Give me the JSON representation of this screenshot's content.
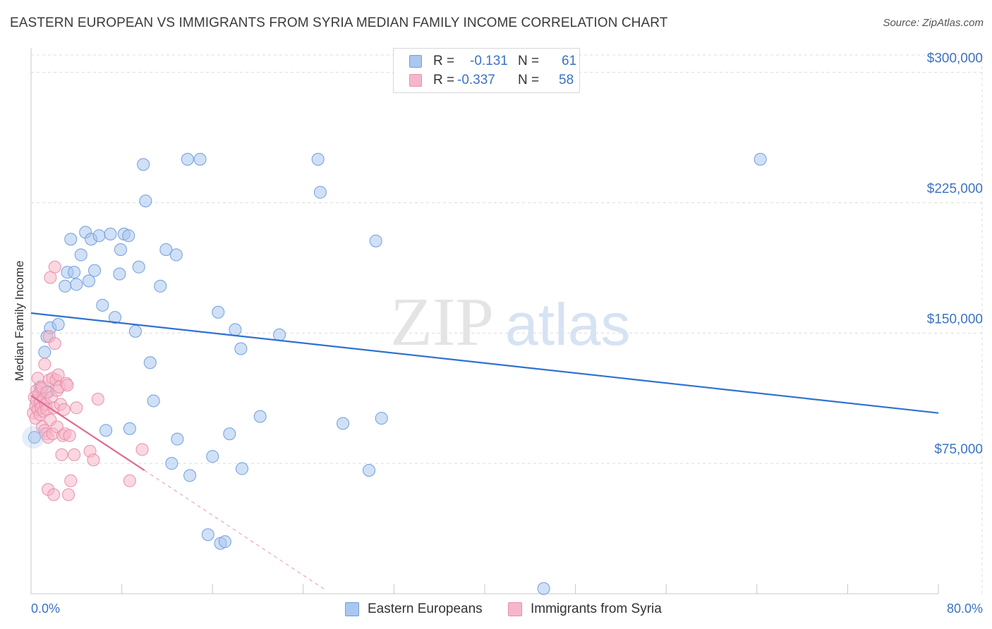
{
  "title": "EASTERN EUROPEAN VS IMMIGRANTS FROM SYRIA MEDIAN FAMILY INCOME CORRELATION CHART",
  "source": "Source: ZipAtlas.com",
  "watermark": {
    "zip": "ZIP",
    "atlas": "atlas"
  },
  "legend": {
    "r_label": "R =",
    "n_label": "N =",
    "rows": [
      {
        "r": "-0.131",
        "n": "61",
        "color": "#a9c7ef"
      },
      {
        "r": "-0.337",
        "n": "58",
        "color": "#f6b6c9"
      }
    ]
  },
  "colors": {
    "blue_fill": "#a9c7ef",
    "blue_stroke": "#6f9fdc",
    "blue_line": "#2f72cf",
    "pink_fill": "#f6b6c9",
    "pink_stroke": "#e890ab",
    "pink_line": "#e06a93",
    "grid": "#dcdcdc",
    "tick_text": "#3b73c4"
  },
  "chart_data": {
    "type": "scatter",
    "title": "EASTERN EUROPEAN VS IMMIGRANTS FROM SYRIA MEDIAN FAMILY INCOME CORRELATION CHART",
    "xlabel": "",
    "ylabel": "Median Family Income",
    "xlim": [
      0,
      80
    ],
    "ylim": [
      0,
      310000
    ],
    "x_tick_labels": [
      "0.0%",
      "80.0%"
    ],
    "y_ticks": [
      {
        "value": 75000,
        "label": "$75,000"
      },
      {
        "value": 150000,
        "label": "$150,000"
      },
      {
        "value": 225000,
        "label": "$225,000"
      },
      {
        "value": 300000,
        "label": "$300,000"
      }
    ],
    "series": [
      {
        "name": "Eastern Europeans",
        "color": "#a9c7ef",
        "trend": {
          "x": [
            0,
            80
          ],
          "y": [
            161500,
            104000
          ]
        },
        "points": [
          [
            0.8,
            119000
          ],
          [
            0.8,
            111000
          ],
          [
            1.2,
            139000
          ],
          [
            1.4,
            148000
          ],
          [
            1.7,
            153000
          ],
          [
            2.4,
            155000
          ],
          [
            3.0,
            177000
          ],
          [
            3.2,
            185000
          ],
          [
            3.5,
            204000
          ],
          [
            3.8,
            185000
          ],
          [
            4.0,
            178000
          ],
          [
            4.4,
            195000
          ],
          [
            4.8,
            208000
          ],
          [
            5.1,
            180000
          ],
          [
            5.3,
            204000
          ],
          [
            5.6,
            186000
          ],
          [
            6.0,
            206000
          ],
          [
            6.3,
            166000
          ],
          [
            6.6,
            94000
          ],
          [
            7.0,
            207000
          ],
          [
            7.4,
            159000
          ],
          [
            7.8,
            184000
          ],
          [
            7.9,
            198000
          ],
          [
            8.2,
            207000
          ],
          [
            8.6,
            206000
          ],
          [
            8.7,
            95000
          ],
          [
            9.2,
            151000
          ],
          [
            9.5,
            188000
          ],
          [
            9.9,
            247000
          ],
          [
            10.1,
            226000
          ],
          [
            10.5,
            133000
          ],
          [
            10.8,
            111000
          ],
          [
            11.4,
            177000
          ],
          [
            11.9,
            198000
          ],
          [
            12.4,
            75000
          ],
          [
            12.8,
            195000
          ],
          [
            12.9,
            89000
          ],
          [
            13.8,
            250000
          ],
          [
            14.0,
            68000
          ],
          [
            14.9,
            250000
          ],
          [
            15.6,
            34000
          ],
          [
            16.0,
            79000
          ],
          [
            16.5,
            162000
          ],
          [
            16.7,
            29000
          ],
          [
            17.1,
            30000
          ],
          [
            17.5,
            92000
          ],
          [
            18.0,
            152000
          ],
          [
            18.5,
            141000
          ],
          [
            18.6,
            72000
          ],
          [
            20.2,
            102000
          ],
          [
            21.9,
            149000
          ],
          [
            25.3,
            250000
          ],
          [
            25.5,
            231000
          ],
          [
            27.5,
            98000
          ],
          [
            29.8,
            71000
          ],
          [
            30.4,
            203000
          ],
          [
            30.9,
            101000
          ],
          [
            45.2,
            3000
          ],
          [
            64.3,
            250000
          ],
          [
            0.3,
            90000
          ],
          [
            1.5,
            116000
          ]
        ]
      },
      {
        "name": "Immigrants from Syria",
        "color": "#f6b6c9",
        "trend": {
          "x": [
            0,
            10
          ],
          "y": [
            114000,
            71000
          ]
        },
        "trend_dashed": {
          "x": [
            10,
            26
          ],
          "y": [
            71000,
            2000
          ]
        },
        "points": [
          [
            0.2,
            104000
          ],
          [
            0.3,
            113000
          ],
          [
            0.4,
            101000
          ],
          [
            0.4,
            108000
          ],
          [
            0.5,
            117000
          ],
          [
            0.5,
            111000
          ],
          [
            0.6,
            106000
          ],
          [
            0.6,
            124000
          ],
          [
            0.7,
            115000
          ],
          [
            0.8,
            110000
          ],
          [
            0.8,
            103000
          ],
          [
            0.9,
            118000
          ],
          [
            0.9,
            107000
          ],
          [
            1.0,
            96000
          ],
          [
            1.0,
            119000
          ],
          [
            1.1,
            112000
          ],
          [
            1.1,
            105000
          ],
          [
            1.2,
            94000
          ],
          [
            1.2,
            132000
          ],
          [
            1.3,
            109000
          ],
          [
            1.3,
            92000
          ],
          [
            1.4,
            116000
          ],
          [
            1.4,
            106000
          ],
          [
            1.5,
            60000
          ],
          [
            1.5,
            90000
          ],
          [
            1.6,
            148000
          ],
          [
            1.6,
            123000
          ],
          [
            1.7,
            182000
          ],
          [
            1.7,
            100000
          ],
          [
            1.8,
            113000
          ],
          [
            1.9,
            124000
          ],
          [
            1.9,
            92000
          ],
          [
            2.0,
            57000
          ],
          [
            2.0,
            107000
          ],
          [
            2.1,
            188000
          ],
          [
            2.1,
            144000
          ],
          [
            2.2,
            123000
          ],
          [
            2.3,
            117000
          ],
          [
            2.3,
            96000
          ],
          [
            2.4,
            126000
          ],
          [
            2.5,
            119000
          ],
          [
            2.6,
            109000
          ],
          [
            2.7,
            80000
          ],
          [
            2.8,
            91000
          ],
          [
            2.9,
            106000
          ],
          [
            3.0,
            92000
          ],
          [
            3.1,
            121000
          ],
          [
            3.2,
            120000
          ],
          [
            3.3,
            57000
          ],
          [
            3.4,
            91000
          ],
          [
            3.5,
            65000
          ],
          [
            3.8,
            80000
          ],
          [
            4.0,
            107000
          ],
          [
            5.2,
            82000
          ],
          [
            5.5,
            77000
          ],
          [
            5.9,
            112000
          ],
          [
            8.7,
            65000
          ],
          [
            9.8,
            83000
          ]
        ]
      }
    ]
  },
  "bottom_legend": [
    {
      "label": "Eastern Europeans",
      "color": "#a9c7ef"
    },
    {
      "label": "Immigrants from Syria",
      "color": "#f6b6c9"
    }
  ]
}
